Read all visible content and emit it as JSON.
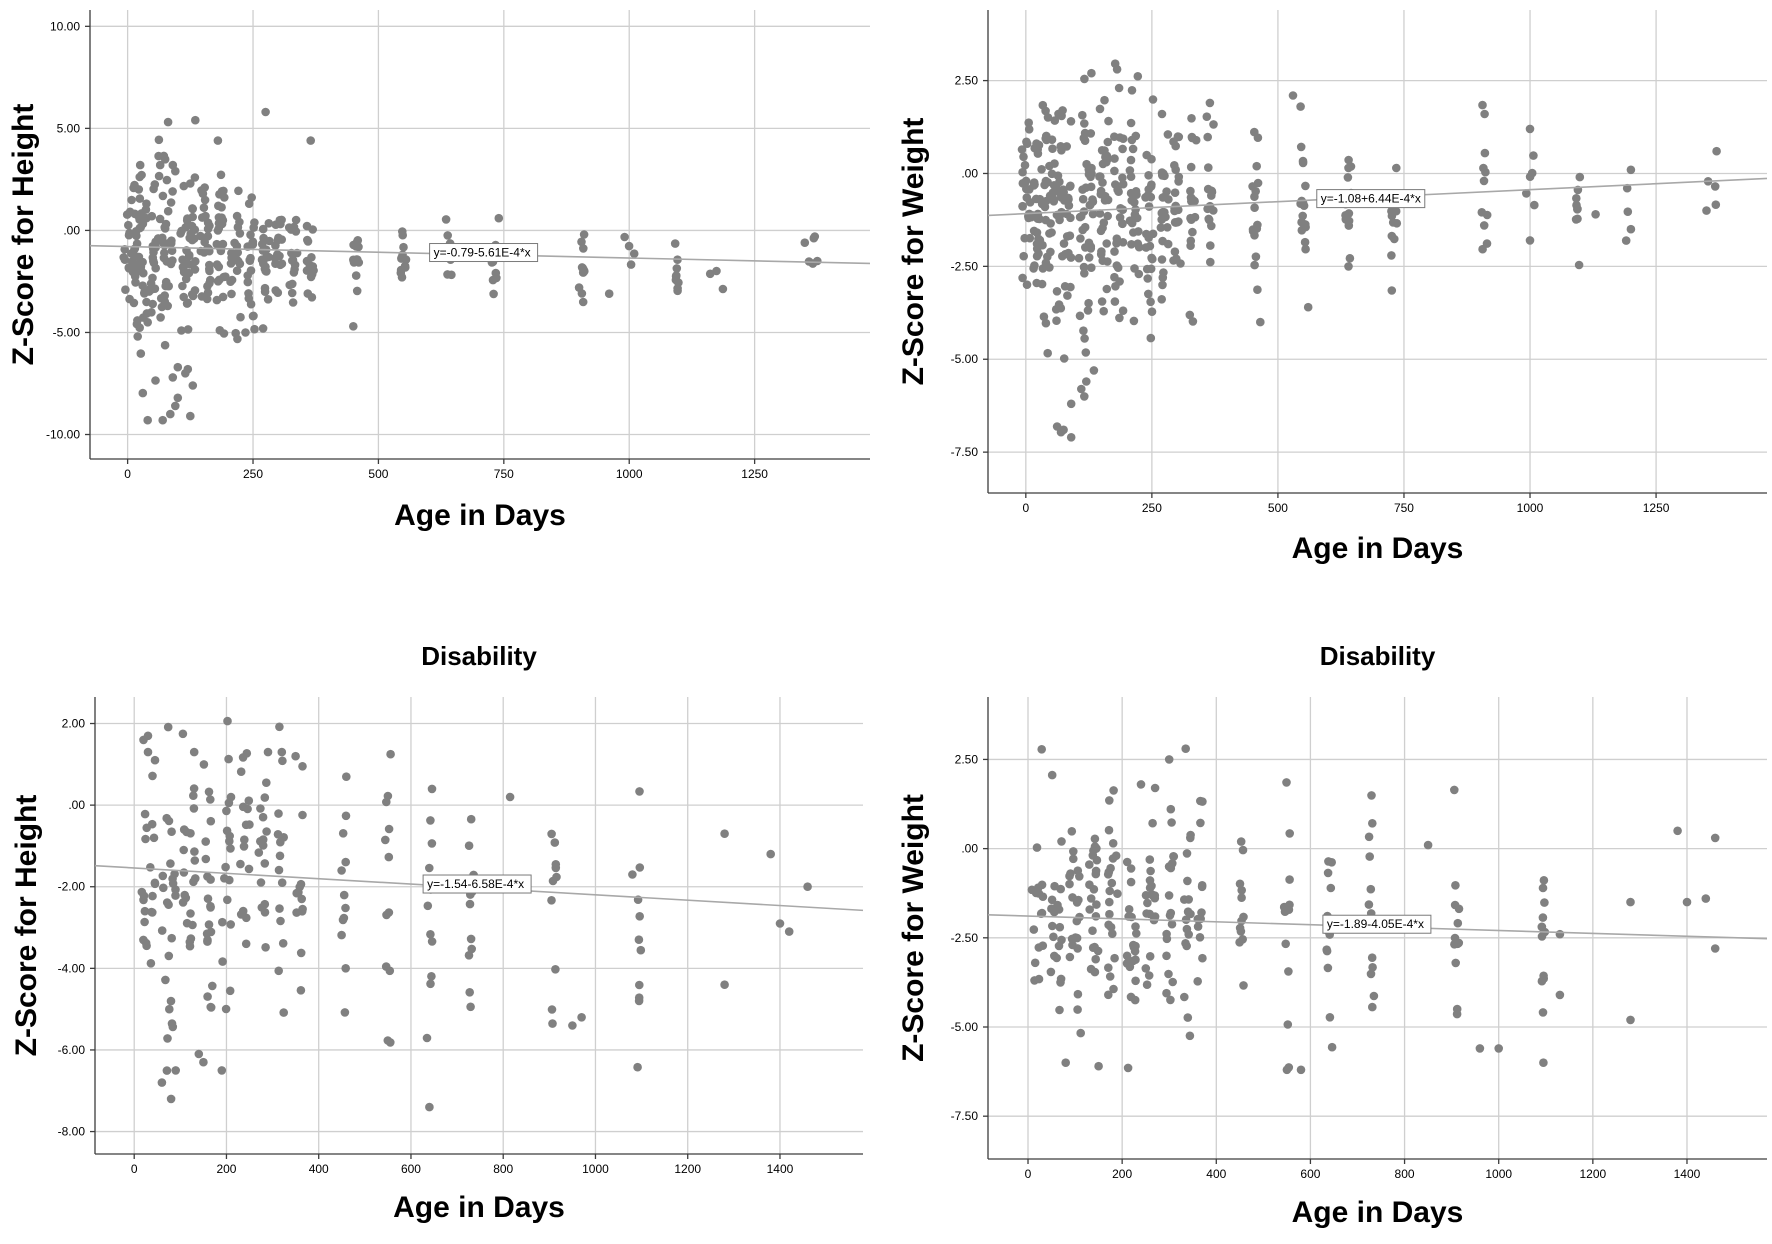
{
  "chart_data": [
    {
      "type": "scatter",
      "title": "",
      "xlabel": "Age in Days",
      "ylabel": "Z-Score for Height",
      "xlim": [
        -75,
        1480
      ],
      "ylim": [
        -11.2,
        10.8
      ],
      "xticks": [
        "0",
        "250",
        "500",
        "750",
        "1000",
        "1250"
      ],
      "xtick_values": [
        0,
        250,
        500,
        750,
        1000,
        1250
      ],
      "yticks": [
        "-10.00",
        "-5.00",
        ".00",
        "5.00",
        "10.00"
      ],
      "ytick_values": [
        -10,
        -5,
        0,
        5,
        10
      ],
      "fit": {
        "intercept": -0.79,
        "slope": -0.000561,
        "label": "y=-0.79-5.61E-4*x",
        "label_x": 610
      },
      "colors": {
        "points": "#808080",
        "fit": "#a8a8a8",
        "grid": "#cfcfcf"
      },
      "clusters": [
        {
          "x": 10,
          "mean": -1.0,
          "sd": 1.6,
          "n": 40,
          "jx": 18
        },
        {
          "x": 40,
          "mean": -1.4,
          "sd": 2.2,
          "n": 45,
          "jx": 18
        },
        {
          "x": 75,
          "mean": -1.2,
          "sd": 2.3,
          "n": 40,
          "jx": 15
        },
        {
          "x": 120,
          "mean": -1.4,
          "sd": 2.2,
          "n": 38,
          "jx": 15
        },
        {
          "x": 155,
          "mean": -1.1,
          "sd": 1.8,
          "n": 28,
          "jx": 10
        },
        {
          "x": 185,
          "mean": -1.3,
          "sd": 1.8,
          "n": 28,
          "jx": 10
        },
        {
          "x": 215,
          "mean": -1.2,
          "sd": 1.5,
          "n": 22,
          "jx": 10
        },
        {
          "x": 245,
          "mean": -1.4,
          "sd": 1.5,
          "n": 20,
          "jx": 8
        },
        {
          "x": 275,
          "mean": -1.2,
          "sd": 1.3,
          "n": 18,
          "jx": 8
        },
        {
          "x": 300,
          "mean": -1.2,
          "sd": 1.2,
          "n": 16,
          "jx": 8
        },
        {
          "x": 330,
          "mean": -1.3,
          "sd": 1.2,
          "n": 16,
          "jx": 8
        },
        {
          "x": 365,
          "mean": -1.4,
          "sd": 1.1,
          "n": 14,
          "jx": 8
        },
        {
          "x": 455,
          "mean": -1.5,
          "sd": 0.9,
          "n": 12,
          "jx": 6
        },
        {
          "x": 550,
          "mean": -1.4,
          "sd": 0.9,
          "n": 12,
          "jx": 6
        },
        {
          "x": 640,
          "mean": -1.6,
          "sd": 0.9,
          "n": 10,
          "jx": 6
        },
        {
          "x": 730,
          "mean": -1.7,
          "sd": 0.9,
          "n": 10,
          "jx": 6
        },
        {
          "x": 910,
          "mean": -1.8,
          "sd": 0.8,
          "n": 9,
          "jx": 6
        },
        {
          "x": 1000,
          "mean": -1.4,
          "sd": 0.5,
          "n": 4,
          "jx": 10
        },
        {
          "x": 1095,
          "mean": -1.9,
          "sd": 0.7,
          "n": 9,
          "jx": 4
        },
        {
          "x": 1180,
          "mean": -2.0,
          "sd": 0.5,
          "n": 3,
          "jx": 20
        },
        {
          "x": 1360,
          "mean": -1.0,
          "sd": 0.6,
          "n": 3,
          "jx": 10
        }
      ],
      "points": [
        [
          40,
          -9.3
        ],
        [
          70,
          -9.3
        ],
        [
          85,
          -9.0
        ],
        [
          125,
          -9.1
        ],
        [
          95,
          -8.6
        ],
        [
          100,
          -8.2
        ],
        [
          130,
          -7.6
        ],
        [
          115,
          -7.0
        ],
        [
          90,
          -7.2
        ],
        [
          100,
          -6.7
        ],
        [
          120,
          -6.8
        ],
        [
          135,
          5.4
        ],
        [
          275,
          5.8
        ],
        [
          180,
          4.4
        ],
        [
          365,
          4.4
        ],
        [
          450,
          -4.7
        ],
        [
          25,
          3.2
        ],
        [
          65,
          3.2
        ],
        [
          90,
          3.2
        ],
        [
          95,
          2.9
        ],
        [
          125,
          2.3
        ],
        [
          150,
          1.8
        ],
        [
          235,
          -5.0
        ],
        [
          270,
          -4.8
        ],
        [
          250,
          -4.2
        ],
        [
          20,
          -5.2
        ],
        [
          40,
          -4.5
        ],
        [
          1370,
          -0.3
        ],
        [
          1350,
          -0.6
        ],
        [
          1375,
          -1.5
        ],
        [
          910,
          -0.2
        ],
        [
          900,
          -2.8
        ],
        [
          960,
          -3.1
        ],
        [
          740,
          0.6
        ]
      ]
    },
    {
      "type": "scatter",
      "title": "",
      "xlabel": "Age in Days",
      "ylabel": "Z-Score for Weight",
      "xlim": [
        -75,
        1470
      ],
      "ylim": [
        -8.6,
        4.4
      ],
      "xticks": [
        "0",
        "250",
        "500",
        "750",
        "1000",
        "1250"
      ],
      "xtick_values": [
        0,
        250,
        500,
        750,
        1000,
        1250
      ],
      "yticks": [
        "-7.50",
        "-5.00",
        "-2.50",
        ".00",
        "2.50"
      ],
      "ytick_values": [
        -7.5,
        -5,
        -2.5,
        0,
        2.5
      ],
      "fit": {
        "intercept": -1.08,
        "slope": 0.000644,
        "label": "y=-1.08+6.44E-4*x",
        "label_x": 585
      },
      "colors": {
        "points": "#808080",
        "fit": "#a8a8a8",
        "grid": "#cfcfcf"
      },
      "clusters": [
        {
          "x": 10,
          "mean": -0.6,
          "sd": 1.3,
          "n": 45,
          "jx": 18
        },
        {
          "x": 40,
          "mean": -0.8,
          "sd": 1.6,
          "n": 48,
          "jx": 18
        },
        {
          "x": 75,
          "mean": -1.0,
          "sd": 1.8,
          "n": 45,
          "jx": 15
        },
        {
          "x": 120,
          "mean": -1.2,
          "sd": 1.9,
          "n": 45,
          "jx": 15
        },
        {
          "x": 155,
          "mean": -0.9,
          "sd": 1.7,
          "n": 32,
          "jx": 10
        },
        {
          "x": 185,
          "mean": -1.0,
          "sd": 1.6,
          "n": 30,
          "jx": 10
        },
        {
          "x": 215,
          "mean": -0.9,
          "sd": 1.5,
          "n": 28,
          "jx": 10
        },
        {
          "x": 245,
          "mean": -1.1,
          "sd": 1.5,
          "n": 26,
          "jx": 8
        },
        {
          "x": 275,
          "mean": -1.0,
          "sd": 1.4,
          "n": 24,
          "jx": 8
        },
        {
          "x": 300,
          "mean": -1.0,
          "sd": 1.3,
          "n": 22,
          "jx": 8
        },
        {
          "x": 330,
          "mean": -1.1,
          "sd": 1.3,
          "n": 20,
          "jx": 8
        },
        {
          "x": 365,
          "mean": -1.0,
          "sd": 1.2,
          "n": 18,
          "jx": 8
        },
        {
          "x": 455,
          "mean": -0.9,
          "sd": 1.1,
          "n": 16,
          "jx": 6
        },
        {
          "x": 550,
          "mean": -0.8,
          "sd": 1.0,
          "n": 16,
          "jx": 6
        },
        {
          "x": 640,
          "mean": -0.6,
          "sd": 0.8,
          "n": 14,
          "jx": 6
        },
        {
          "x": 730,
          "mean": -0.7,
          "sd": 0.8,
          "n": 14,
          "jx": 6
        },
        {
          "x": 910,
          "mean": -0.4,
          "sd": 0.9,
          "n": 10,
          "jx": 6
        },
        {
          "x": 1000,
          "mean": -0.4,
          "sd": 0.9,
          "n": 5,
          "jx": 12
        },
        {
          "x": 1095,
          "mean": -0.8,
          "sd": 0.7,
          "n": 9,
          "jx": 4
        },
        {
          "x": 1190,
          "mean": -0.6,
          "sd": 0.8,
          "n": 3,
          "jx": 15
        },
        {
          "x": 1360,
          "mean": -0.3,
          "sd": 0.6,
          "n": 3,
          "jx": 10
        }
      ],
      "points": [
        [
          90,
          -7.1
        ],
        [
          75,
          -6.9
        ],
        [
          90,
          -6.2
        ],
        [
          110,
          -5.8
        ],
        [
          120,
          -5.6
        ],
        [
          135,
          -5.3
        ],
        [
          130,
          2.7
        ],
        [
          185,
          2.3
        ],
        [
          365,
          1.9
        ],
        [
          530,
          2.1
        ],
        [
          545,
          1.8
        ],
        [
          270,
          1.6
        ],
        [
          910,
          1.6
        ],
        [
          1000,
          1.2
        ],
        [
          1370,
          0.6
        ],
        [
          1350,
          -1.0
        ],
        [
          465,
          -4.0
        ],
        [
          560,
          -3.6
        ],
        [
          640,
          -2.5
        ],
        [
          1000,
          -1.8
        ],
        [
          1200,
          -1.5
        ],
        [
          1200,
          0.1
        ],
        [
          1130,
          -1.1
        ]
      ]
    },
    {
      "type": "scatter",
      "title": "Disability",
      "xlabel": "Age in Days",
      "ylabel": "Z-Score for Height",
      "xlim": [
        -85,
        1580
      ],
      "ylim": [
        -8.55,
        2.65
      ],
      "xticks": [
        "0",
        "200",
        "400",
        "600",
        "800",
        "1000",
        "1200",
        "1400"
      ],
      "xtick_values": [
        0,
        200,
        400,
        600,
        800,
        1000,
        1200,
        1400
      ],
      "yticks": [
        "-8.00",
        "-6.00",
        "-4.00",
        "-2.00",
        ".00",
        "2.00"
      ],
      "ytick_values": [
        -8,
        -6,
        -4,
        -2,
        0,
        2
      ],
      "fit": {
        "intercept": -1.54,
        "slope": -0.000658,
        "label": "y=-1.54-6.58E-4*x",
        "label_x": 635
      },
      "colors": {
        "points": "#808080",
        "fit": "#a8a8a8",
        "grid": "#cfcfcf"
      },
      "clusters": [
        {
          "x": 30,
          "mean": -1.7,
          "sd": 1.9,
          "n": 22,
          "jx": 18
        },
        {
          "x": 75,
          "mean": -1.9,
          "sd": 2.1,
          "n": 24,
          "jx": 15
        },
        {
          "x": 120,
          "mean": -1.8,
          "sd": 1.9,
          "n": 22,
          "jx": 15
        },
        {
          "x": 160,
          "mean": -2.0,
          "sd": 1.9,
          "n": 20,
          "jx": 10
        },
        {
          "x": 200,
          "mean": -1.7,
          "sd": 1.7,
          "n": 18,
          "jx": 10
        },
        {
          "x": 240,
          "mean": -1.6,
          "sd": 1.6,
          "n": 16,
          "jx": 10
        },
        {
          "x": 280,
          "mean": -1.6,
          "sd": 1.6,
          "n": 16,
          "jx": 10
        },
        {
          "x": 320,
          "mean": -1.6,
          "sd": 1.6,
          "n": 14,
          "jx": 10
        },
        {
          "x": 360,
          "mean": -1.8,
          "sd": 1.7,
          "n": 12,
          "jx": 8
        },
        {
          "x": 455,
          "mean": -1.9,
          "sd": 1.8,
          "n": 12,
          "jx": 6
        },
        {
          "x": 550,
          "mean": -2.3,
          "sd": 1.8,
          "n": 12,
          "jx": 6
        },
        {
          "x": 640,
          "mean": -2.2,
          "sd": 1.9,
          "n": 12,
          "jx": 6
        },
        {
          "x": 730,
          "mean": -2.2,
          "sd": 1.9,
          "n": 12,
          "jx": 6
        },
        {
          "x": 910,
          "mean": -2.2,
          "sd": 1.9,
          "n": 10,
          "jx": 6
        },
        {
          "x": 1095,
          "mean": -2.4,
          "sd": 1.6,
          "n": 10,
          "jx": 4
        }
      ],
      "points": [
        [
          30,
          1.7
        ],
        [
          30,
          1.3
        ],
        [
          45,
          1.1
        ],
        [
          130,
          1.3
        ],
        [
          290,
          1.3
        ],
        [
          320,
          1.3
        ],
        [
          350,
          1.2
        ],
        [
          60,
          -6.8
        ],
        [
          80,
          -7.2
        ],
        [
          90,
          -6.5
        ],
        [
          140,
          -6.1
        ],
        [
          150,
          -6.3
        ],
        [
          190,
          -6.5
        ],
        [
          640,
          -7.4
        ],
        [
          1280,
          -0.7
        ],
        [
          1380,
          -1.2
        ],
        [
          1460,
          -2.0
        ],
        [
          1400,
          -2.9
        ],
        [
          1420,
          -3.1
        ],
        [
          1280,
          -4.4
        ],
        [
          815,
          0.2
        ],
        [
          970,
          -5.2
        ],
        [
          950,
          -5.4
        ],
        [
          1080,
          -1.7
        ]
      ]
    },
    {
      "type": "scatter",
      "title": "Disability",
      "xlabel": "Age in Days",
      "ylabel": "Z-Score for Weight",
      "xlim": [
        -85,
        1570
      ],
      "ylim": [
        -8.7,
        4.25
      ],
      "xticks": [
        "0",
        "200",
        "400",
        "600",
        "800",
        "1000",
        "1200",
        "1400"
      ],
      "xtick_values": [
        0,
        200,
        400,
        600,
        800,
        1000,
        1200,
        1400
      ],
      "yticks": [
        "-7.50",
        "-5.00",
        "-2.50",
        ".00",
        "2.50"
      ],
      "ytick_values": [
        -7.5,
        -5,
        -2.5,
        0,
        2.5
      ],
      "fit": {
        "intercept": -1.89,
        "slope": -0.000405,
        "label": "y=-1.89-4.05E-4*x",
        "label_x": 635
      },
      "colors": {
        "points": "#808080",
        "fit": "#a8a8a8",
        "grid": "#cfcfcf"
      },
      "clusters": [
        {
          "x": 20,
          "mean": -2.0,
          "sd": 1.4,
          "n": 16,
          "jx": 12
        },
        {
          "x": 60,
          "mean": -2.0,
          "sd": 1.5,
          "n": 20,
          "jx": 12
        },
        {
          "x": 100,
          "mean": -2.1,
          "sd": 1.6,
          "n": 22,
          "jx": 12
        },
        {
          "x": 140,
          "mean": -2.0,
          "sd": 1.6,
          "n": 22,
          "jx": 10
        },
        {
          "x": 180,
          "mean": -1.9,
          "sd": 1.6,
          "n": 22,
          "jx": 10
        },
        {
          "x": 220,
          "mean": -1.9,
          "sd": 1.6,
          "n": 22,
          "jx": 10
        },
        {
          "x": 260,
          "mean": -1.7,
          "sd": 1.6,
          "n": 20,
          "jx": 10
        },
        {
          "x": 300,
          "mean": -1.6,
          "sd": 1.6,
          "n": 18,
          "jx": 10
        },
        {
          "x": 340,
          "mean": -1.6,
          "sd": 1.6,
          "n": 16,
          "jx": 8
        },
        {
          "x": 365,
          "mean": -1.7,
          "sd": 1.5,
          "n": 12,
          "jx": 6
        },
        {
          "x": 455,
          "mean": -2.0,
          "sd": 1.5,
          "n": 12,
          "jx": 6
        },
        {
          "x": 550,
          "mean": -2.3,
          "sd": 1.6,
          "n": 12,
          "jx": 6
        },
        {
          "x": 640,
          "mean": -2.4,
          "sd": 1.6,
          "n": 12,
          "jx": 6
        },
        {
          "x": 730,
          "mean": -2.4,
          "sd": 1.6,
          "n": 12,
          "jx": 6
        },
        {
          "x": 910,
          "mean": -2.4,
          "sd": 1.6,
          "n": 12,
          "jx": 6
        },
        {
          "x": 1095,
          "mean": -2.6,
          "sd": 1.6,
          "n": 12,
          "jx": 4
        }
      ],
      "points": [
        [
          300,
          2.5
        ],
        [
          335,
          2.8
        ],
        [
          240,
          1.8
        ],
        [
          270,
          1.7
        ],
        [
          80,
          -6.0
        ],
        [
          150,
          -6.1
        ],
        [
          550,
          -6.2
        ],
        [
          580,
          -6.2
        ],
        [
          1380,
          0.5
        ],
        [
          1460,
          0.3
        ],
        [
          1460,
          -2.8
        ],
        [
          1280,
          -1.5
        ],
        [
          1280,
          -4.8
        ],
        [
          1400,
          -1.5
        ],
        [
          1440,
          -1.4
        ],
        [
          1130,
          -2.4
        ],
        [
          1130,
          -4.1
        ],
        [
          960,
          -5.6
        ],
        [
          1000,
          -5.6
        ],
        [
          850,
          0.1
        ],
        [
          1095,
          -6.0
        ]
      ]
    }
  ]
}
